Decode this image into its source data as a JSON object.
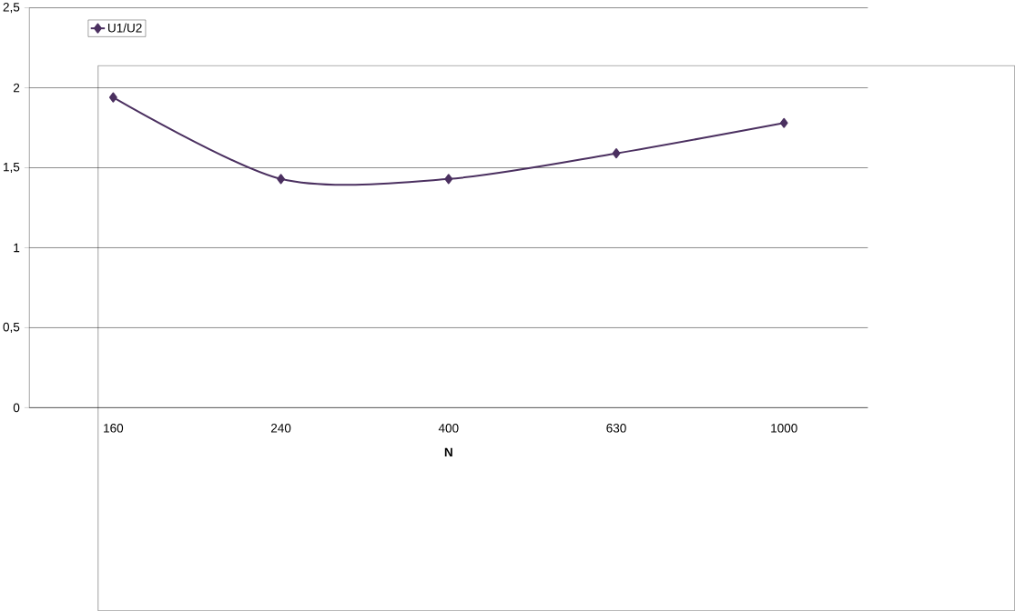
{
  "chart_data": {
    "type": "line",
    "xlabel": "N",
    "categories": [
      "160",
      "240",
      "400",
      "630",
      "1000"
    ],
    "series": [
      {
        "name": "U1/U2",
        "color": "#4b3060",
        "values": [
          1.94,
          1.43,
          1.43,
          1.59,
          1.78
        ]
      }
    ],
    "ylim": [
      0,
      2.5
    ],
    "yticks": [
      0,
      {
        "value": 0.5,
        "label": "0,5"
      },
      1,
      {
        "value": 1.5,
        "label": "1,5"
      },
      2,
      {
        "value": 2.5,
        "label": "2,5"
      }
    ],
    "grid": "y",
    "legend": "top left",
    "marker": "diamond",
    "line_style": "solid"
  }
}
